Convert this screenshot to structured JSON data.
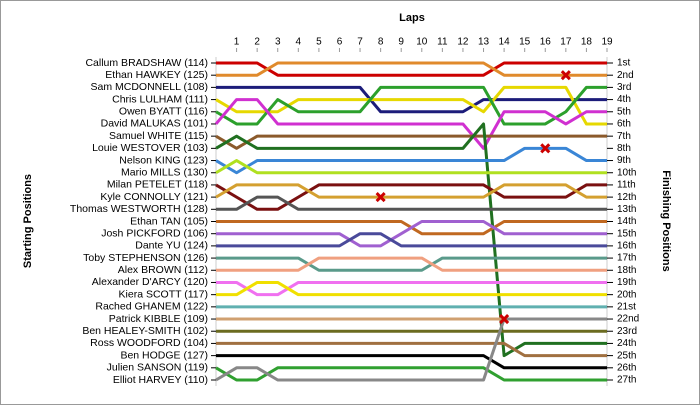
{
  "chart_data": {
    "type": "lap",
    "title": "Laps",
    "ylabel_left": "Starting Positions",
    "ylabel_right": "Finishing Positions",
    "x": [
      0,
      1,
      2,
      3,
      4,
      5,
      6,
      7,
      8,
      9,
      10,
      11,
      12,
      13,
      14,
      15,
      16,
      17,
      18,
      19
    ],
    "xlim": [
      0,
      19
    ],
    "xticks": [
      1,
      2,
      3,
      4,
      5,
      6,
      7,
      8,
      9,
      10,
      11,
      12,
      13,
      14,
      15,
      16,
      17,
      18,
      19
    ],
    "ylim": [
      1,
      27
    ],
    "yticks": [
      {
        "value": 1,
        "label": "1st"
      },
      {
        "value": 2,
        "label": "2nd"
      },
      {
        "value": 3,
        "label": "3rd"
      },
      {
        "value": 4,
        "label": "4th"
      },
      {
        "value": 5,
        "label": "5th"
      },
      {
        "value": 6,
        "label": "6th"
      },
      {
        "value": 7,
        "label": "7th"
      },
      {
        "value": 8,
        "label": "8th"
      },
      {
        "value": 9,
        "label": "9th"
      },
      {
        "value": 10,
        "label": "10th"
      },
      {
        "value": 11,
        "label": "11th"
      },
      {
        "value": 12,
        "label": "12th"
      },
      {
        "value": 13,
        "label": "13th"
      },
      {
        "value": 14,
        "label": "14th"
      },
      {
        "value": 15,
        "label": "15th"
      },
      {
        "value": 16,
        "label": "16th"
      },
      {
        "value": 17,
        "label": "17th"
      },
      {
        "value": 18,
        "label": "18th"
      },
      {
        "value": 19,
        "label": "19th"
      },
      {
        "value": 20,
        "label": "20th"
      },
      {
        "value": 21,
        "label": "21st"
      },
      {
        "value": 22,
        "label": "22nd"
      },
      {
        "value": 23,
        "label": "23rd"
      },
      {
        "value": 24,
        "label": "24th"
      },
      {
        "value": 25,
        "label": "25th"
      },
      {
        "value": 26,
        "label": "26th"
      },
      {
        "value": 27,
        "label": "27th"
      }
    ],
    "series": [
      {
        "name": "Callum BRADSHAW (114)",
        "color": "#cc0000",
        "values": [
          1,
          1,
          1,
          2,
          2,
          2,
          2,
          2,
          2,
          2,
          2,
          2,
          2,
          2,
          1,
          1,
          1,
          1,
          1,
          1
        ]
      },
      {
        "name": "Ethan HAWKEY (125)",
        "color": "#e08a2c",
        "values": [
          2,
          2,
          2,
          1,
          1,
          1,
          1,
          1,
          1,
          1,
          1,
          1,
          1,
          1,
          2,
          2,
          2,
          2,
          2,
          2
        ]
      },
      {
        "name": "Sam MCDONNELL (108)",
        "color": "#1c1c7a",
        "values": [
          3,
          3,
          3,
          3,
          3,
          3,
          3,
          3,
          5,
          5,
          5,
          5,
          5,
          4,
          4,
          4,
          4,
          4,
          4,
          4
        ]
      },
      {
        "name": "Chris LULHAM (111)",
        "color": "#e6d800",
        "values": [
          4,
          5,
          5,
          5,
          4,
          4,
          4,
          4,
          4,
          4,
          4,
          4,
          4,
          5,
          3,
          3,
          3,
          3,
          6,
          6
        ]
      },
      {
        "name": "Owen BYATT (116)",
        "color": "#2ca02c",
        "values": [
          5,
          6,
          6,
          4,
          5,
          5,
          5,
          5,
          3,
          3,
          3,
          3,
          3,
          3,
          6,
          6,
          6,
          5,
          3,
          3
        ]
      },
      {
        "name": "David MALUKAS (101)",
        "color": "#d030d0",
        "values": [
          6,
          4,
          4,
          6,
          6,
          6,
          6,
          6,
          6,
          6,
          6,
          6,
          6,
          8,
          5,
          5,
          5,
          6,
          5,
          5
        ]
      },
      {
        "name": "Samuel WHITE (115)",
        "color": "#8b5a2b",
        "values": [
          7,
          8,
          7,
          7,
          7,
          7,
          7,
          7,
          7,
          7,
          7,
          7,
          7,
          7,
          7,
          7,
          7,
          7,
          7,
          7
        ]
      },
      {
        "name": "Louie WESTOVER (103)",
        "color": "#207020",
        "values": [
          8,
          7,
          8,
          8,
          8,
          8,
          8,
          8,
          8,
          8,
          8,
          8,
          8,
          6,
          25,
          24,
          24,
          24,
          24,
          24
        ]
      },
      {
        "name": "Nelson KING (123)",
        "color": "#3a86d6",
        "values": [
          9,
          10,
          9,
          9,
          9,
          9,
          9,
          9,
          9,
          9,
          9,
          9,
          9,
          9,
          9,
          8,
          8,
          8,
          9,
          9
        ]
      },
      {
        "name": "Mario MILLS (130)",
        "color": "#b0e020",
        "values": [
          10,
          9,
          10,
          10,
          10,
          10,
          10,
          10,
          10,
          10,
          10,
          10,
          10,
          10,
          10,
          10,
          10,
          10,
          10,
          10
        ]
      },
      {
        "name": "Milan PETELET (118)",
        "color": "#7a1010",
        "values": [
          11,
          12,
          13,
          13,
          12,
          11,
          11,
          11,
          11,
          11,
          11,
          11,
          11,
          11,
          12,
          12,
          12,
          12,
          11,
          11
        ]
      },
      {
        "name": "Kyle CONNOLLY (121)",
        "color": "#d4a030",
        "values": [
          12,
          11,
          11,
          11,
          11,
          12,
          12,
          12,
          12,
          12,
          12,
          12,
          12,
          12,
          11,
          11,
          11,
          11,
          12,
          12
        ]
      },
      {
        "name": "Thomas WESTWORTH (128)",
        "color": "#555555",
        "values": [
          13,
          13,
          12,
          12,
          13,
          13,
          13,
          13,
          13,
          13,
          13,
          13,
          13,
          13,
          13,
          13,
          13,
          13,
          13,
          13
        ]
      },
      {
        "name": "Ethan TAN (105)",
        "color": "#c06820",
        "values": [
          14,
          14,
          14,
          14,
          14,
          14,
          14,
          14,
          14,
          14,
          15,
          15,
          15,
          15,
          14,
          14,
          14,
          14,
          14,
          14
        ]
      },
      {
        "name": "Josh PICKFORD (106)",
        "color": "#a060d0",
        "values": [
          15,
          15,
          15,
          15,
          15,
          15,
          15,
          16,
          16,
          15,
          14,
          14,
          14,
          14,
          15,
          15,
          15,
          15,
          15,
          15
        ]
      },
      {
        "name": "Dante YU (124)",
        "color": "#4a4a9a",
        "values": [
          16,
          16,
          16,
          16,
          16,
          16,
          16,
          15,
          15,
          16,
          16,
          16,
          16,
          16,
          16,
          16,
          16,
          16,
          16,
          16
        ]
      },
      {
        "name": "Toby STEPHENSON (126)",
        "color": "#5a9a8a",
        "values": [
          17,
          17,
          17,
          17,
          17,
          18,
          18,
          18,
          18,
          18,
          18,
          17,
          17,
          17,
          17,
          17,
          17,
          17,
          17,
          17
        ]
      },
      {
        "name": "Alex BROWN (112)",
        "color": "#f0a080",
        "values": [
          18,
          18,
          18,
          18,
          18,
          17,
          17,
          17,
          17,
          17,
          17,
          18,
          18,
          18,
          18,
          18,
          18,
          18,
          18,
          18
        ]
      },
      {
        "name": "Alexander D'ARCY (120)",
        "color": "#f070f0",
        "values": [
          19,
          19,
          20,
          20,
          19,
          19,
          19,
          19,
          19,
          19,
          19,
          19,
          19,
          19,
          19,
          19,
          19,
          19,
          19,
          19
        ]
      },
      {
        "name": "Kiera SCOTT (117)",
        "color": "#f0e000",
        "values": [
          20,
          20,
          19,
          19,
          20,
          20,
          20,
          20,
          20,
          20,
          20,
          20,
          20,
          20,
          20,
          20,
          20,
          20,
          20,
          20
        ]
      },
      {
        "name": "Rached GHANEM (122)",
        "color": "#60b0b0",
        "values": [
          21,
          21,
          21,
          21,
          21,
          21,
          21,
          21,
          21,
          21,
          21,
          21,
          21,
          21,
          21,
          21,
          21,
          21,
          21,
          21
        ]
      },
      {
        "name": "Patrick KIBBLE (109)",
        "color": "#d0a070",
        "values": [
          22,
          22,
          22,
          22,
          22,
          22,
          22,
          22,
          22,
          22,
          22,
          22,
          22,
          22,
          22,
          22,
          22,
          22,
          22,
          22
        ]
      },
      {
        "name": "Ben HEALEY-SMITH (102)",
        "color": "#6b6b20",
        "values": [
          23,
          23,
          23,
          23,
          23,
          23,
          23,
          23,
          23,
          23,
          23,
          23,
          23,
          23,
          23,
          23,
          23,
          23,
          23,
          23
        ]
      },
      {
        "name": "Ross WOODFORD (104)",
        "color": "#a07040",
        "values": [
          24,
          24,
          24,
          24,
          24,
          24,
          24,
          24,
          24,
          24,
          24,
          24,
          24,
          24,
          24,
          25,
          25,
          25,
          25,
          25
        ]
      },
      {
        "name": "Ben HODGE (127)",
        "color": "#000000",
        "values": [
          25,
          25,
          25,
          25,
          25,
          25,
          25,
          25,
          25,
          25,
          25,
          25,
          25,
          25,
          26,
          26,
          26,
          26,
          26,
          26
        ]
      },
      {
        "name": "Julien SANSON (119)",
        "color": "#30a030",
        "values": [
          26,
          27,
          27,
          26,
          26,
          26,
          26,
          26,
          26,
          26,
          26,
          26,
          26,
          26,
          27,
          27,
          27,
          27,
          27,
          27
        ]
      },
      {
        "name": "Elliot HARVEY (110)",
        "color": "#888888",
        "values": [
          27,
          26,
          26,
          27,
          27,
          27,
          27,
          27,
          27,
          27,
          27,
          27,
          27,
          27,
          22,
          22,
          22,
          22,
          22,
          22
        ]
      }
    ],
    "markers": [
      {
        "x": 17,
        "y": 2
      },
      {
        "x": 16,
        "y": 8
      },
      {
        "x": 8,
        "y": 12
      },
      {
        "x": 14,
        "y": 22
      }
    ],
    "marker_color": "#cc0000"
  }
}
